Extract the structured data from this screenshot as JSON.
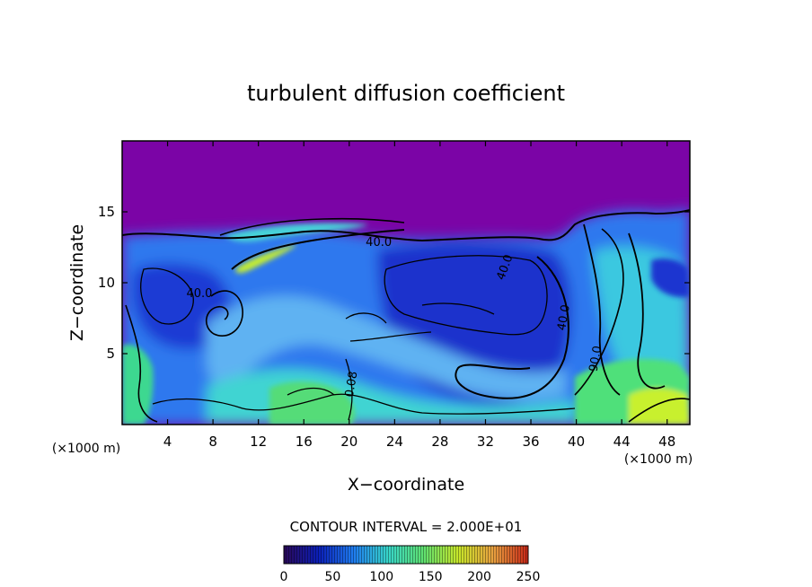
{
  "chart_data": {
    "type": "heatmap",
    "title": "turbulent diffusion coefficient",
    "xlabel": "X−coordinate",
    "ylabel": "Z−coordinate",
    "x_units": "(×1000 m)",
    "y_units": "(×1000 m)",
    "xlim": [
      0,
      50
    ],
    "ylim": [
      0,
      20
    ],
    "x_ticks": [
      4,
      8,
      12,
      16,
      20,
      24,
      28,
      32,
      36,
      40,
      44,
      48
    ],
    "y_ticks": [
      5,
      10,
      15
    ],
    "contour_interval_text": "CONTOUR INTERVAL = 2.000E+01",
    "contour_labels": [
      {
        "text": "40.0",
        "x": 22.6,
        "y": 12.6,
        "rotation": 0
      },
      {
        "text": "40.0",
        "x": 34.0,
        "y": 11.0,
        "rotation": -70
      },
      {
        "text": "40.0",
        "x": 39.2,
        "y": 7.5,
        "rotation": -80
      },
      {
        "text": "0.08",
        "x": 20.5,
        "y": 2.8,
        "rotation": -80
      },
      {
        "text": "90.0",
        "x": 42.0,
        "y": 4.6,
        "rotation": -80
      },
      {
        "text": "40.0",
        "x": 6.8,
        "y": 9.0,
        "rotation": 0
      }
    ],
    "colorbar": {
      "min": 0,
      "max": 250,
      "ticks": [
        0,
        50,
        100,
        150,
        200,
        250
      ],
      "colors": [
        "#2a0858",
        "#0b1fb8",
        "#1f7cf0",
        "#38d6c8",
        "#5fe070",
        "#c8e62a",
        "#e8a040",
        "#c82818"
      ]
    },
    "colors": {
      "upper_layer": "#7b04a6",
      "deep_blue": "#1530d2",
      "mid_blue": "#2e74ee",
      "light_blue": "#5fb0f2",
      "cyan": "#48d8d0",
      "green": "#5ee06a",
      "yellow_green": "#c9f02a",
      "contour": "#000000"
    }
  }
}
